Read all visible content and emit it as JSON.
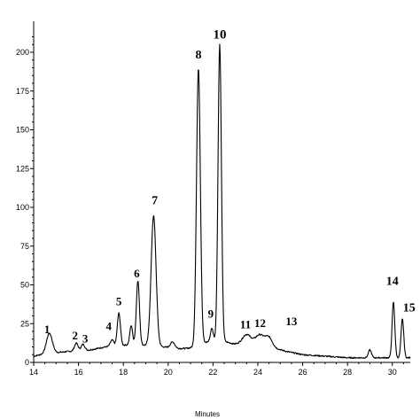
{
  "chart_data": {
    "type": "line",
    "xlabel": "Minutes",
    "ylabel": "",
    "xlim": [
      14,
      30.8
    ],
    "ylim": [
      0,
      220
    ],
    "x_ticks": [
      14,
      16,
      18,
      20,
      22,
      24,
      26,
      28,
      30
    ],
    "y_ticks": [
      0,
      25,
      50,
      75,
      100,
      125,
      150,
      175,
      200
    ],
    "baseline": [
      [
        14.0,
        4
      ],
      [
        14.3,
        5
      ],
      [
        14.8,
        6
      ],
      [
        15.5,
        7
      ],
      [
        16.5,
        8
      ],
      [
        17.2,
        10
      ],
      [
        18.0,
        11
      ],
      [
        18.4,
        12
      ],
      [
        19.0,
        11
      ],
      [
        19.8,
        10
      ],
      [
        20.3,
        9
      ],
      [
        20.8,
        9
      ],
      [
        21.2,
        10
      ],
      [
        21.5,
        12
      ],
      [
        21.9,
        14
      ],
      [
        22.4,
        14
      ],
      [
        22.9,
        12
      ],
      [
        23.3,
        11
      ],
      [
        24.0,
        11
      ],
      [
        24.8,
        9
      ],
      [
        25.3,
        7
      ],
      [
        26.0,
        5
      ],
      [
        27.0,
        4
      ],
      [
        28.0,
        3
      ],
      [
        29.0,
        3
      ],
      [
        30.0,
        3
      ],
      [
        30.8,
        3
      ]
    ],
    "peaks": [
      {
        "label": "1",
        "x": 14.7,
        "y": 13,
        "w": 0.13
      },
      {
        "label": "2",
        "x": 15.9,
        "y": 5,
        "w": 0.08
      },
      {
        "label": "3",
        "x": 16.2,
        "y": 4,
        "w": 0.08
      },
      {
        "label": "4",
        "x": 17.5,
        "y": 4,
        "w": 0.08
      },
      {
        "label": "5",
        "x": 17.8,
        "y": 21,
        "w": 0.07
      },
      {
        "label": "",
        "x": 18.35,
        "y": 12,
        "w": 0.06
      },
      {
        "label": "6",
        "x": 18.65,
        "y": 41,
        "w": 0.07
      },
      {
        "label": "7",
        "x": 19.35,
        "y": 84,
        "w": 0.11
      },
      {
        "label": "",
        "x": 20.2,
        "y": 4,
        "w": 0.1
      },
      {
        "label": "8",
        "x": 21.35,
        "y": 179,
        "w": 0.085
      },
      {
        "label": "9",
        "x": 21.95,
        "y": 8,
        "w": 0.06
      },
      {
        "label": "10",
        "x": 22.3,
        "y": 191,
        "w": 0.075
      },
      {
        "label": "11",
        "x": 23.5,
        "y": 7,
        "w": 0.2
      },
      {
        "label": "12",
        "x": 24.1,
        "y": 7,
        "w": 0.2
      },
      {
        "label": "13",
        "x": 24.5,
        "y": 6,
        "w": 0.15
      },
      {
        "label": "",
        "x": 29.0,
        "y": 5,
        "w": 0.07
      },
      {
        "label": "14",
        "x": 30.05,
        "y": 36,
        "w": 0.06
      },
      {
        "label": "15",
        "x": 30.45,
        "y": 25,
        "w": 0.06
      }
    ],
    "annotations": [
      {
        "text": "1",
        "x": 14.6,
        "y": 19,
        "size": 13
      },
      {
        "text": "2",
        "x": 15.85,
        "y": 15,
        "size": 13
      },
      {
        "text": "3",
        "x": 16.3,
        "y": 13,
        "size": 13
      },
      {
        "text": "4",
        "x": 17.35,
        "y": 21,
        "size": 13
      },
      {
        "text": "5",
        "x": 17.8,
        "y": 37,
        "size": 13
      },
      {
        "text": "6",
        "x": 18.6,
        "y": 55,
        "size": 13
      },
      {
        "text": "7",
        "x": 19.4,
        "y": 102,
        "size": 14
      },
      {
        "text": "8",
        "x": 21.35,
        "y": 196,
        "size": 14
      },
      {
        "text": "9",
        "x": 21.9,
        "y": 29,
        "size": 13
      },
      {
        "text": "10",
        "x": 22.3,
        "y": 209,
        "size": 15
      },
      {
        "text": "11",
        "x": 23.45,
        "y": 22,
        "size": 13
      },
      {
        "text": "12",
        "x": 24.1,
        "y": 23,
        "size": 13
      },
      {
        "text": "13",
        "x": 25.5,
        "y": 24,
        "size": 13
      },
      {
        "text": "14",
        "x": 30.0,
        "y": 50,
        "size": 14
      },
      {
        "text": "15",
        "x": 30.75,
        "y": 33,
        "size": 14
      }
    ]
  }
}
